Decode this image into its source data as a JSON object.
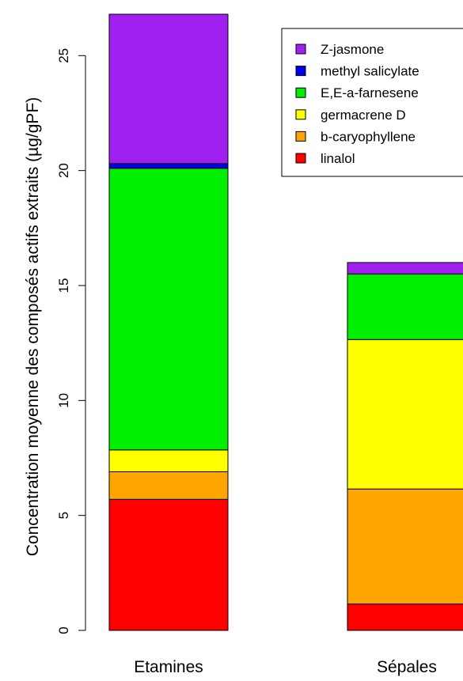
{
  "chart_data": {
    "type": "bar",
    "stacked": true,
    "title": "",
    "xlabel": "",
    "ylabel": "Concentration moyenne des composés actifs extraits (µg/gPF)",
    "ylim": [
      0,
      26.8
    ],
    "yticks": [
      0,
      5,
      10,
      15,
      20,
      25
    ],
    "grid": false,
    "legend_position": "top-right",
    "categories": [
      "Etamines",
      "Sépales"
    ],
    "series": [
      {
        "name": "linalol",
        "color": "#FF0000",
        "values": [
          5.7,
          1.15
        ]
      },
      {
        "name": "b-caryophyllene",
        "color": "#FFA500",
        "values": [
          1.2,
          5.0
        ]
      },
      {
        "name": "germacrene D",
        "color": "#FFFF00",
        "values": [
          0.95,
          6.5
        ]
      },
      {
        "name": "E,E-a-farnesene",
        "color": "#00EE00",
        "values": [
          12.25,
          2.85
        ]
      },
      {
        "name": "methyl salicylate",
        "color": "#0000EE",
        "values": [
          0.2,
          0.0
        ]
      },
      {
        "name": "Z-jasmone",
        "color": "#A020F0",
        "values": [
          6.5,
          0.5
        ]
      }
    ],
    "legend_order": [
      "Z-jasmone",
      "methyl salicylate",
      "E,E-a-farnesene",
      "germacrene D",
      "b-caryophyllene",
      "linalol"
    ]
  }
}
